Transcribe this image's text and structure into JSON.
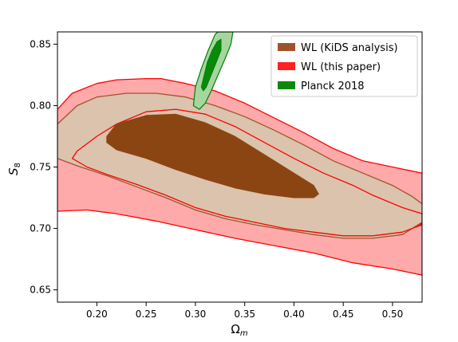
{
  "chart_data": {
    "type": "contour",
    "xlabel_base": "Ω",
    "xlabel_sub": "m",
    "ylabel_base": "S",
    "ylabel_sub": "8",
    "xlim": [
      0.16,
      0.53
    ],
    "ylim": [
      0.64,
      0.86
    ],
    "xticks": [
      "0.20",
      "0.25",
      "0.30",
      "0.35",
      "0.40",
      "0.45",
      "0.50"
    ],
    "yticks": [
      "0.65",
      "0.70",
      "0.75",
      "0.80",
      "0.85"
    ],
    "legend_position": "top-right",
    "colors": {
      "kids_dark": "#8b4513",
      "kids_light": "#dbc3ad",
      "kids_edge": "#a0522d",
      "wl_light": "#ffaaaa",
      "wl_edge": "#ff0000",
      "wl_dark": "#ff0000",
      "planck_light": "#a6d6a0",
      "planck_dark": "#0a8a0a",
      "planck_edge": "#008000"
    },
    "series": [
      {
        "name": "WL (KiDS analysis)",
        "color": "#a0522d",
        "level68": [
          [
            0.21,
            0.775
          ],
          [
            0.22,
            0.785
          ],
          [
            0.25,
            0.792
          ],
          [
            0.28,
            0.793
          ],
          [
            0.31,
            0.786
          ],
          [
            0.34,
            0.775
          ],
          [
            0.37,
            0.76
          ],
          [
            0.4,
            0.745
          ],
          [
            0.42,
            0.735
          ],
          [
            0.425,
            0.728
          ],
          [
            0.42,
            0.725
          ],
          [
            0.4,
            0.725
          ],
          [
            0.37,
            0.728
          ],
          [
            0.34,
            0.733
          ],
          [
            0.31,
            0.74
          ],
          [
            0.28,
            0.748
          ],
          [
            0.25,
            0.757
          ],
          [
            0.22,
            0.764
          ],
          [
            0.21,
            0.77
          ]
        ],
        "level95": [
          [
            0.16,
            0.785
          ],
          [
            0.18,
            0.8
          ],
          [
            0.2,
            0.807
          ],
          [
            0.23,
            0.81
          ],
          [
            0.26,
            0.81
          ],
          [
            0.29,
            0.807
          ],
          [
            0.32,
            0.8
          ],
          [
            0.35,
            0.791
          ],
          [
            0.38,
            0.78
          ],
          [
            0.41,
            0.768
          ],
          [
            0.44,
            0.755
          ],
          [
            0.47,
            0.745
          ],
          [
            0.5,
            0.735
          ],
          [
            0.52,
            0.726
          ],
          [
            0.53,
            0.72
          ],
          [
            0.53,
            0.705
          ],
          [
            0.51,
            0.695
          ],
          [
            0.48,
            0.692
          ],
          [
            0.45,
            0.692
          ],
          [
            0.42,
            0.695
          ],
          [
            0.39,
            0.699
          ],
          [
            0.36,
            0.703
          ],
          [
            0.33,
            0.708
          ],
          [
            0.3,
            0.715
          ],
          [
            0.27,
            0.725
          ],
          [
            0.24,
            0.734
          ],
          [
            0.21,
            0.743
          ],
          [
            0.18,
            0.751
          ],
          [
            0.16,
            0.757
          ]
        ]
      },
      {
        "name": "WL (this paper)",
        "color": "#ff0000",
        "level68": [
          [
            0.18,
            0.763
          ],
          [
            0.2,
            0.775
          ],
          [
            0.22,
            0.785
          ],
          [
            0.25,
            0.795
          ],
          [
            0.28,
            0.797
          ],
          [
            0.31,
            0.793
          ],
          [
            0.34,
            0.783
          ],
          [
            0.37,
            0.77
          ],
          [
            0.4,
            0.757
          ],
          [
            0.43,
            0.745
          ],
          [
            0.46,
            0.735
          ],
          [
            0.48,
            0.727
          ],
          [
            0.51,
            0.717
          ],
          [
            0.53,
            0.712
          ],
          [
            0.53,
            0.703
          ],
          [
            0.51,
            0.697
          ],
          [
            0.48,
            0.694
          ],
          [
            0.45,
            0.694
          ],
          [
            0.42,
            0.697
          ],
          [
            0.39,
            0.7
          ],
          [
            0.36,
            0.705
          ],
          [
            0.33,
            0.71
          ],
          [
            0.3,
            0.717
          ],
          [
            0.27,
            0.727
          ],
          [
            0.24,
            0.736
          ],
          [
            0.21,
            0.744
          ],
          [
            0.19,
            0.75
          ],
          [
            0.175,
            0.757
          ]
        ],
        "level95": [
          [
            0.16,
            0.797
          ],
          [
            0.175,
            0.81
          ],
          [
            0.2,
            0.818
          ],
          [
            0.22,
            0.821
          ],
          [
            0.25,
            0.822
          ],
          [
            0.265,
            0.822
          ],
          [
            0.29,
            0.818
          ],
          [
            0.32,
            0.812
          ],
          [
            0.35,
            0.802
          ],
          [
            0.38,
            0.79
          ],
          [
            0.41,
            0.778
          ],
          [
            0.44,
            0.765
          ],
          [
            0.47,
            0.755
          ],
          [
            0.5,
            0.75
          ],
          [
            0.53,
            0.745
          ],
          [
            0.53,
            0.662
          ],
          [
            0.5,
            0.667
          ],
          [
            0.46,
            0.672
          ],
          [
            0.42,
            0.68
          ],
          [
            0.38,
            0.686
          ],
          [
            0.34,
            0.692
          ],
          [
            0.3,
            0.699
          ],
          [
            0.26,
            0.706
          ],
          [
            0.22,
            0.712
          ],
          [
            0.19,
            0.715
          ],
          [
            0.16,
            0.714
          ]
        ]
      },
      {
        "name": "Planck 2018",
        "color": "#008000",
        "level68": [
          [
            0.306,
            0.815
          ],
          [
            0.312,
            0.835
          ],
          [
            0.317,
            0.845
          ],
          [
            0.322,
            0.852
          ],
          [
            0.326,
            0.854
          ],
          [
            0.326,
            0.845
          ],
          [
            0.321,
            0.835
          ],
          [
            0.316,
            0.825
          ],
          [
            0.311,
            0.815
          ],
          [
            0.308,
            0.812
          ]
        ],
        "level95": [
          [
            0.298,
            0.8
          ],
          [
            0.3,
            0.815
          ],
          [
            0.306,
            0.83
          ],
          [
            0.313,
            0.845
          ],
          [
            0.32,
            0.858
          ],
          [
            0.323,
            0.86
          ],
          [
            0.338,
            0.86
          ],
          [
            0.336,
            0.85
          ],
          [
            0.33,
            0.838
          ],
          [
            0.323,
            0.825
          ],
          [
            0.316,
            0.812
          ],
          [
            0.31,
            0.802
          ],
          [
            0.304,
            0.797
          ]
        ]
      }
    ]
  }
}
